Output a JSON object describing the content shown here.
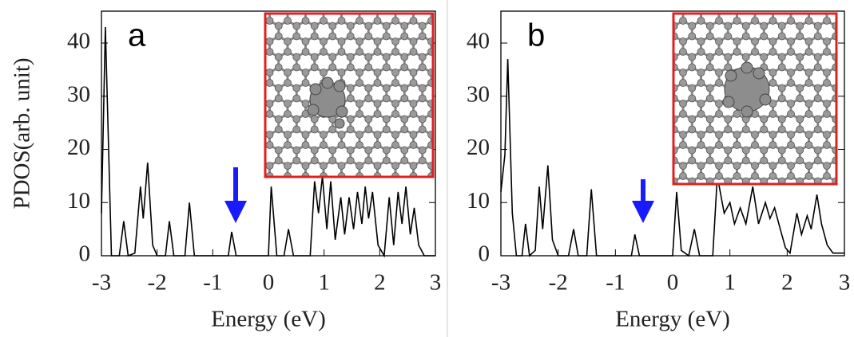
{
  "chart_data": [
    {
      "type": "line",
      "annotation": "a",
      "x_label": "Energy (eV)",
      "y_label": "PDOS(arb. unit)",
      "x": [
        -3.0,
        -2.93,
        -2.82,
        -2.68,
        -2.6,
        -2.52,
        -2.4,
        -2.3,
        -2.25,
        -2.17,
        -2.08,
        -2.0,
        -1.85,
        -1.78,
        -1.7,
        -1.5,
        -1.42,
        -1.33,
        -0.72,
        -0.66,
        -0.58,
        0.0,
        0.05,
        0.15,
        0.28,
        0.36,
        0.45,
        0.75,
        0.83,
        0.9,
        0.97,
        1.05,
        1.12,
        1.2,
        1.3,
        1.37,
        1.45,
        1.53,
        1.6,
        1.68,
        1.74,
        1.8,
        1.87,
        1.97,
        2.08,
        2.17,
        2.25,
        2.33,
        2.4,
        2.47,
        2.55,
        2.62,
        2.7,
        2.8,
        3.0
      ],
      "series": [
        {
          "color": "#000000",
          "values": [
            8,
            43,
            0,
            0,
            6.5,
            0,
            0.5,
            13,
            7,
            17.5,
            2,
            0,
            0,
            6.5,
            0,
            0,
            10,
            0,
            0,
            4.5,
            0,
            0,
            13,
            0,
            0,
            5,
            0,
            0,
            14,
            8,
            15,
            5,
            14,
            3,
            11,
            4,
            11,
            5,
            12,
            6,
            13,
            7,
            12,
            2,
            0,
            11,
            2,
            12,
            6,
            13,
            4,
            9,
            2,
            0,
            0
          ]
        }
      ],
      "xlim": [
        -3,
        3
      ],
      "ylim": [
        0,
        46
      ],
      "xticks": [
        -3,
        -2,
        -1,
        0,
        1,
        2,
        3
      ],
      "yticks": [
        0,
        10,
        20,
        30,
        40
      ]
    },
    {
      "type": "line",
      "annotation": "b",
      "x_label": "Energy (eV)",
      "x": [
        -3.0,
        -2.93,
        -2.88,
        -2.8,
        -2.73,
        -2.63,
        -2.57,
        -2.5,
        -2.4,
        -2.33,
        -2.27,
        -2.18,
        -2.1,
        -2.0,
        -1.82,
        -1.73,
        -1.65,
        -1.5,
        -1.42,
        -1.33,
        -0.72,
        -0.66,
        -0.58,
        0.0,
        0.07,
        0.15,
        0.28,
        0.38,
        0.47,
        0.7,
        0.78,
        0.9,
        1.0,
        1.08,
        1.18,
        1.28,
        1.4,
        1.5,
        1.62,
        1.7,
        1.78,
        1.88,
        1.97,
        2.05,
        2.17,
        2.25,
        2.35,
        2.42,
        2.52,
        2.6,
        2.7,
        2.8,
        3.0
      ],
      "series": [
        {
          "color": "#000000",
          "values": [
            12,
            19,
            37,
            8,
            0,
            0,
            6,
            0,
            1,
            13,
            5,
            17,
            3,
            0,
            0,
            5,
            0,
            0,
            12.5,
            0,
            0,
            4,
            0,
            0,
            12,
            1,
            0,
            5,
            0,
            0,
            15,
            8,
            10,
            6,
            9,
            6,
            13,
            6,
            10,
            7,
            9,
            5,
            1.5,
            0.5,
            8,
            4,
            7.5,
            5,
            11.5,
            6,
            2,
            0.5,
            0.5
          ]
        }
      ],
      "xlim": [
        -3,
        3
      ],
      "ylim": [
        0,
        46
      ],
      "xticks": [
        -3,
        -2,
        -1,
        0,
        1,
        2,
        3
      ],
      "yticks": [
        0,
        10,
        20,
        30,
        40
      ]
    }
  ]
}
